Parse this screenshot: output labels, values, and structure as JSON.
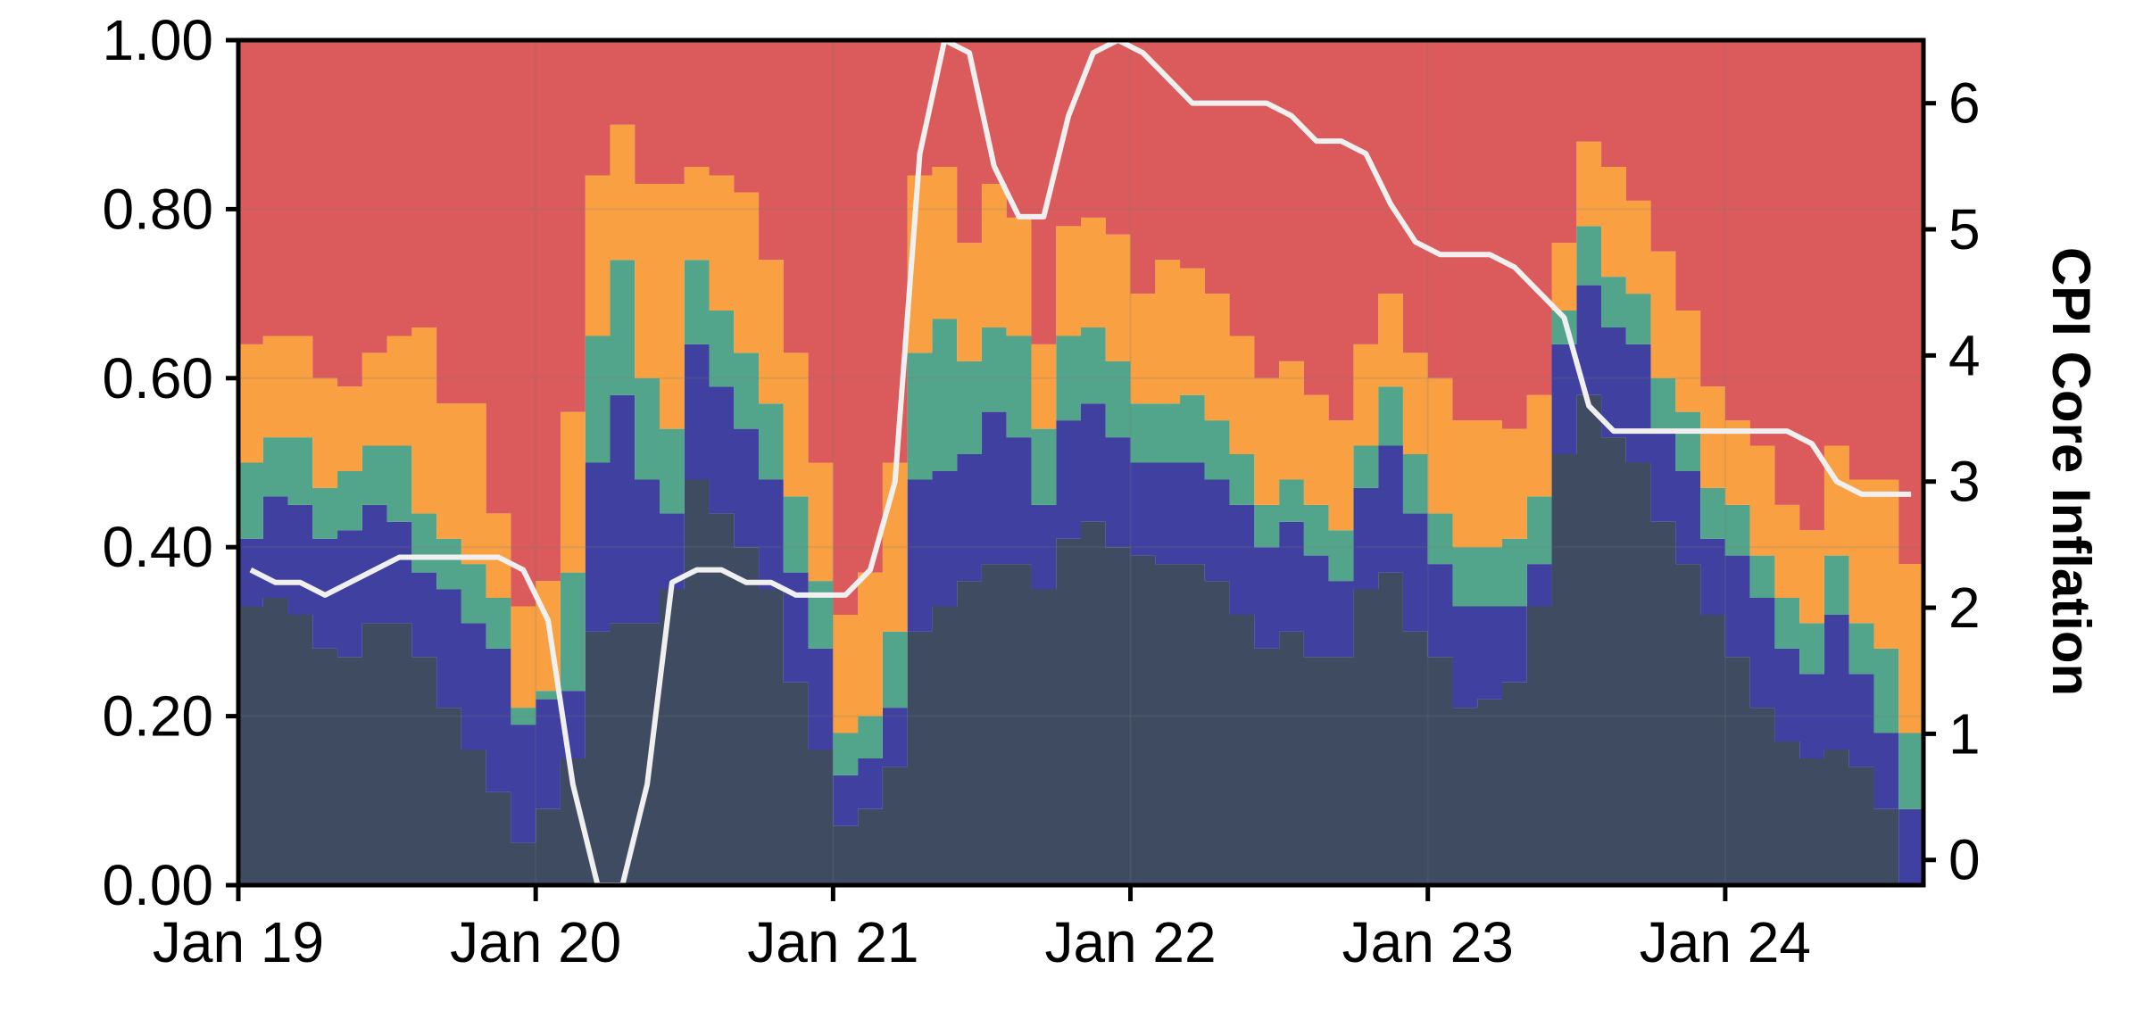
{
  "chart_data": {
    "type": "area",
    "stacked": true,
    "step": true,
    "x": [
      "2019-01",
      "2019-02",
      "2019-03",
      "2019-04",
      "2019-05",
      "2019-06",
      "2019-07",
      "2019-08",
      "2019-09",
      "2019-10",
      "2019-11",
      "2019-12",
      "2020-01",
      "2020-02",
      "2020-03",
      "2020-04",
      "2020-05",
      "2020-06",
      "2020-07",
      "2020-08",
      "2020-09",
      "2020-10",
      "2020-11",
      "2020-12",
      "2021-01",
      "2021-02",
      "2021-03",
      "2021-04",
      "2021-05",
      "2021-06",
      "2021-07",
      "2021-08",
      "2021-09",
      "2021-10",
      "2021-11",
      "2021-12",
      "2022-01",
      "2022-02",
      "2022-03",
      "2022-04",
      "2022-05",
      "2022-06",
      "2022-07",
      "2022-08",
      "2022-09",
      "2022-10",
      "2022-11",
      "2022-12",
      "2023-01",
      "2023-02",
      "2023-03",
      "2023-04",
      "2023-05",
      "2023-06",
      "2023-07",
      "2023-08",
      "2023-09",
      "2023-10",
      "2023-11",
      "2023-12",
      "2024-01",
      "2024-02",
      "2024-03",
      "2024-04",
      "2024-05",
      "2024-06",
      "2024-07",
      "2024-08"
    ],
    "series": [
      {
        "color": "#3f4b61",
        "values": [
          0.33,
          0.34,
          0.32,
          0.28,
          0.27,
          0.31,
          0.31,
          0.27,
          0.21,
          0.16,
          0.11,
          0.05,
          0.09,
          0.15,
          0.3,
          0.31,
          0.31,
          0.35,
          0.48,
          0.44,
          0.4,
          0.35,
          0.24,
          0.16,
          0.07,
          0.09,
          0.14,
          0.3,
          0.33,
          0.36,
          0.38,
          0.38,
          0.35,
          0.41,
          0.43,
          0.4,
          0.39,
          0.38,
          0.38,
          0.36,
          0.32,
          0.28,
          0.3,
          0.27,
          0.27,
          0.35,
          0.37,
          0.3,
          0.27,
          0.21,
          0.22,
          0.24,
          0.33,
          0.51,
          0.58,
          0.53,
          0.5,
          0.43,
          0.38,
          0.32,
          0.27,
          0.21,
          0.17,
          0.15,
          0.16,
          0.14,
          0.09,
          0.0
        ]
      },
      {
        "color": "#4040a0",
        "values": [
          0.08,
          0.12,
          0.13,
          0.13,
          0.15,
          0.14,
          0.12,
          0.1,
          0.14,
          0.15,
          0.17,
          0.14,
          0.13,
          0.08,
          0.2,
          0.27,
          0.17,
          0.09,
          0.16,
          0.15,
          0.14,
          0.13,
          0.13,
          0.12,
          0.06,
          0.06,
          0.07,
          0.18,
          0.16,
          0.15,
          0.18,
          0.15,
          0.1,
          0.14,
          0.14,
          0.13,
          0.11,
          0.12,
          0.12,
          0.12,
          0.13,
          0.12,
          0.13,
          0.12,
          0.09,
          0.12,
          0.15,
          0.14,
          0.11,
          0.12,
          0.11,
          0.09,
          0.05,
          0.13,
          0.13,
          0.13,
          0.14,
          0.11,
          0.11,
          0.09,
          0.12,
          0.13,
          0.11,
          0.1,
          0.16,
          0.11,
          0.09,
          0.09
        ]
      },
      {
        "color": "#52a58a",
        "values": [
          0.09,
          0.07,
          0.08,
          0.06,
          0.07,
          0.07,
          0.09,
          0.07,
          0.06,
          0.07,
          0.06,
          0.02,
          0.01,
          0.14,
          0.15,
          0.16,
          0.12,
          0.1,
          0.1,
          0.09,
          0.09,
          0.09,
          0.09,
          0.08,
          0.05,
          0.05,
          0.09,
          0.15,
          0.18,
          0.11,
          0.1,
          0.12,
          0.09,
          0.1,
          0.09,
          0.09,
          0.07,
          0.07,
          0.08,
          0.07,
          0.06,
          0.05,
          0.05,
          0.06,
          0.06,
          0.05,
          0.07,
          0.07,
          0.06,
          0.07,
          0.07,
          0.08,
          0.08,
          0.04,
          0.07,
          0.06,
          0.06,
          0.06,
          0.07,
          0.06,
          0.06,
          0.05,
          0.06,
          0.06,
          0.07,
          0.06,
          0.1,
          0.09
        ]
      },
      {
        "color": "#f8a042",
        "values": [
          0.14,
          0.12,
          0.12,
          0.13,
          0.1,
          0.11,
          0.13,
          0.22,
          0.16,
          0.19,
          0.1,
          0.12,
          0.13,
          0.19,
          0.19,
          0.16,
          0.23,
          0.29,
          0.11,
          0.16,
          0.19,
          0.17,
          0.17,
          0.14,
          0.14,
          0.17,
          0.2,
          0.21,
          0.18,
          0.14,
          0.17,
          0.14,
          0.1,
          0.13,
          0.13,
          0.15,
          0.13,
          0.17,
          0.15,
          0.15,
          0.14,
          0.15,
          0.14,
          0.13,
          0.13,
          0.12,
          0.11,
          0.12,
          0.16,
          0.15,
          0.15,
          0.13,
          0.12,
          0.08,
          0.1,
          0.13,
          0.11,
          0.15,
          0.12,
          0.12,
          0.1,
          0.13,
          0.11,
          0.11,
          0.13,
          0.17,
          0.2,
          0.2
        ]
      },
      {
        "color": "#db5a5c",
        "values": [
          0.36,
          0.35,
          0.35,
          0.4,
          0.41,
          0.37,
          0.35,
          0.34,
          0.43,
          0.43,
          0.56,
          0.67,
          0.64,
          0.44,
          0.16,
          0.1,
          0.17,
          0.17,
          0.15,
          0.16,
          0.18,
          0.26,
          0.37,
          0.5,
          0.68,
          0.63,
          0.5,
          0.16,
          0.15,
          0.24,
          0.17,
          0.21,
          0.36,
          0.22,
          0.21,
          0.23,
          0.3,
          0.26,
          0.27,
          0.3,
          0.35,
          0.4,
          0.38,
          0.42,
          0.45,
          0.36,
          0.3,
          0.37,
          0.4,
          0.45,
          0.45,
          0.46,
          0.42,
          0.24,
          0.12,
          0.15,
          0.19,
          0.25,
          0.32,
          0.41,
          0.45,
          0.48,
          0.55,
          0.58,
          0.48,
          0.52,
          0.52,
          0.62
        ]
      }
    ],
    "line": {
      "name": "CPI Core Inflation",
      "axis": "right",
      "color": "#f0f0f0",
      "values": [
        2.3,
        2.2,
        2.2,
        2.1,
        2.2,
        2.3,
        2.4,
        2.4,
        2.4,
        2.4,
        2.4,
        2.3,
        1.9,
        0.6,
        -0.2,
        -0.2,
        0.6,
        2.2,
        2.3,
        2.3,
        2.2,
        2.2,
        2.1,
        2.1,
        2.1,
        2.3,
        3.0,
        5.6,
        6.5,
        6.4,
        5.5,
        5.1,
        5.1,
        5.9,
        6.4,
        6.5,
        6.4,
        6.2,
        6.0,
        6.0,
        6.0,
        6.0,
        5.9,
        5.7,
        5.7,
        5.6,
        5.2,
        4.9,
        4.8,
        4.8,
        4.8,
        4.7,
        4.5,
        4.3,
        3.6,
        3.4,
        3.4,
        3.4,
        3.4,
        3.4,
        3.4,
        3.4,
        3.4,
        3.3,
        3.0,
        2.9,
        2.9,
        2.9
      ]
    },
    "ylim": [
      0,
      1.0
    ],
    "y2lim": [
      -0.2,
      6.5
    ],
    "yticks": [
      "0.00",
      "0.20",
      "0.40",
      "0.60",
      "0.80",
      "1.00"
    ],
    "y2ticks": [
      "0",
      "1",
      "2",
      "3",
      "4",
      "5",
      "6"
    ],
    "xticks": [
      "Jan 19",
      "Jan 20",
      "Jan 21",
      "Jan 22",
      "Jan 23",
      "Jan 24"
    ],
    "y2label": "CPI Core Inflation",
    "grid": true
  }
}
